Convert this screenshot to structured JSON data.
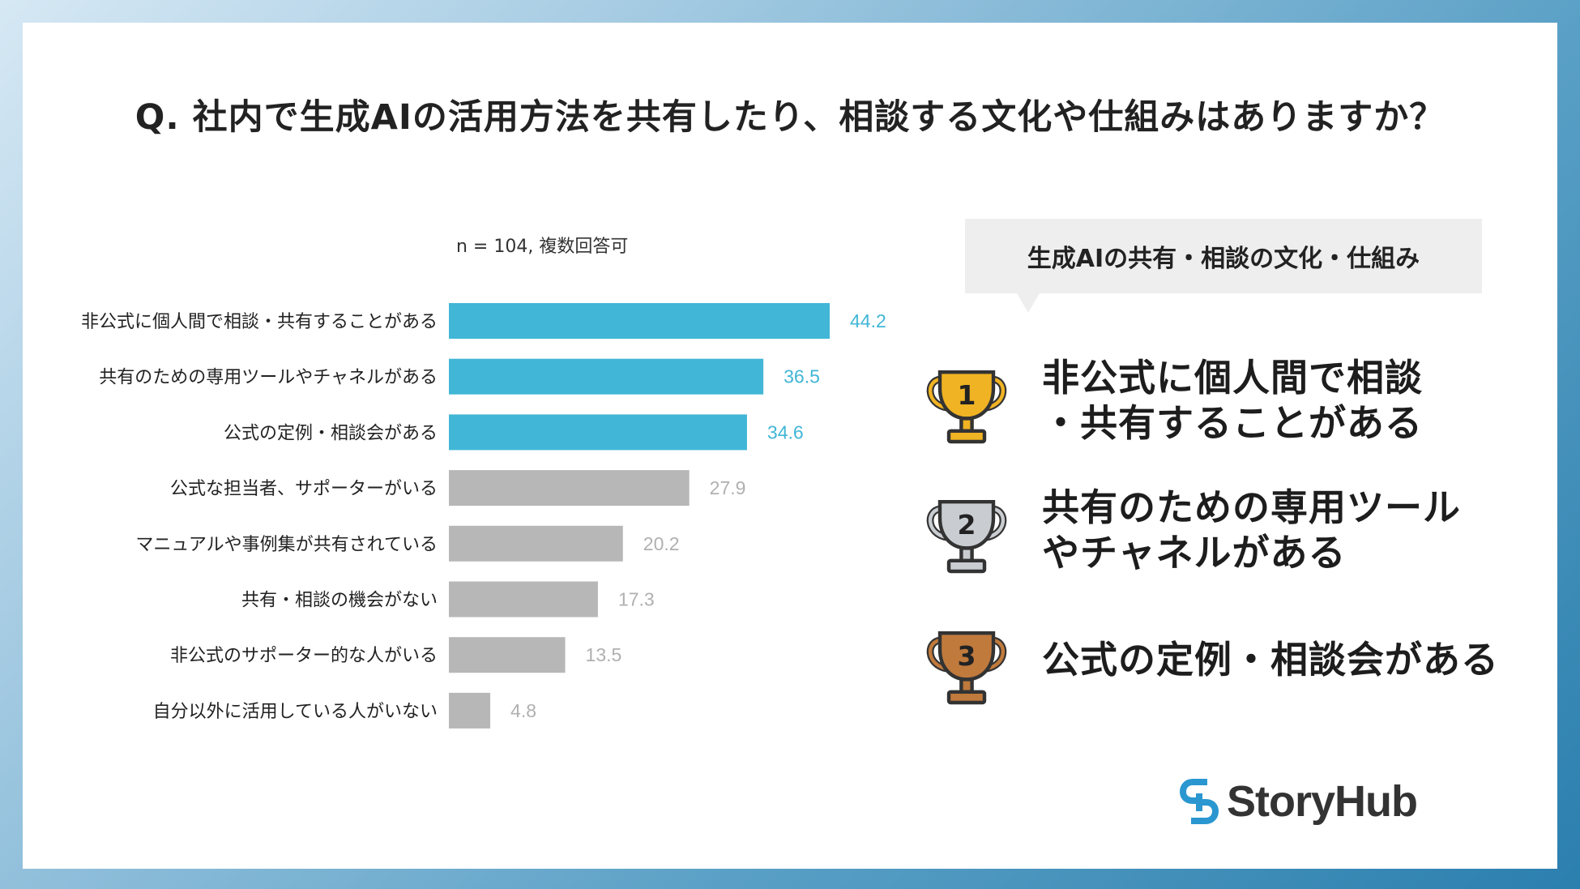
{
  "title": "Q. 社内で生成AIの活用方法を共有したり、相談する文化や仕組みはありますか？",
  "note": "n = 104, 複数回答可",
  "colors": {
    "highlight": "#41b6d6",
    "other": "#b7b7b7",
    "highlight_label": "#41b6d6",
    "other_label": "#b0b0b0"
  },
  "chart_data": {
    "type": "bar",
    "orientation": "horizontal",
    "categories": [
      "非公式に個人間で相談・共有することがある",
      "共有のための専用ツールやチャネルがある",
      "公式の定例・相談会がある",
      "公式な担当者、サポーターがいる",
      "マニュアルや事例集が共有されている",
      "共有・相談の機会がない",
      "非公式のサポーター的な人がいる",
      "自分以外に活用している人がいない"
    ],
    "values": [
      44.2,
      36.5,
      34.6,
      27.9,
      20.2,
      17.3,
      13.5,
      4.8
    ],
    "value_labels": [
      "44.2",
      "36.5",
      "34.6",
      "27.9",
      "20.2",
      "17.3",
      "13.5",
      "4.8"
    ],
    "highlighted_top": 3,
    "xlim": [
      0,
      50
    ]
  },
  "summary": {
    "heading": "生成AIの共有・相談の文化・仕組み",
    "ranks": [
      {
        "number": "1",
        "medal": "gold-trophy-icon",
        "line1": "非公式に個人間で相談",
        "line2": "・共有することがある"
      },
      {
        "number": "2",
        "medal": "silver-trophy-icon",
        "line1": "共有のための専用ツール",
        "line2": "やチャネルがある"
      },
      {
        "number": "3",
        "medal": "bronze-trophy-icon",
        "line1": "公式の定例・相談会がある",
        "line2": ""
      }
    ]
  },
  "logo": {
    "text": "StoryHub"
  }
}
